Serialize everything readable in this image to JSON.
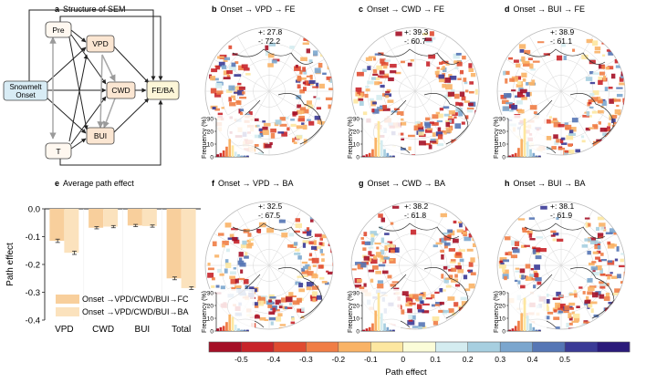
{
  "panels": {
    "a": {
      "letter": "a",
      "title": "Structure of SEM",
      "nodes": {
        "pre": "Pre",
        "t": "T",
        "onset": [
          "Snowmelt",
          "Onset"
        ],
        "vpd": "VPD",
        "cwd": "CWD",
        "bui": "BUI",
        "fe": "FE/BA"
      },
      "colors": {
        "node_peach": "#fbe6d2",
        "node_blue": "#d8ecf5",
        "node_yellow": "#fdf6d8",
        "node_light": "#fff8f0"
      }
    },
    "maps": [
      {
        "letter": "b",
        "title": "Onset → VPD → FE",
        "plus": "+: 27.8",
        "minus": "-: 72.2",
        "seed": 11
      },
      {
        "letter": "c",
        "title": "Onset → CWD → FE",
        "plus": "+: 39.3",
        "minus": "-: 60.7",
        "seed": 23
      },
      {
        "letter": "d",
        "title": "Onset → BUI → FE",
        "plus": "+: 38.9",
        "minus": "-: 61.1",
        "seed": 37
      },
      {
        "letter": "f",
        "title": "Onset → VPD → BA",
        "plus": "+: 32.5",
        "minus": "-: 67.5",
        "seed": 41
      },
      {
        "letter": "g",
        "title": "Onset → CWD → BA",
        "plus": "+: 38.2",
        "minus": "-: 61.8",
        "seed": 53
      },
      {
        "letter": "h",
        "title": "Onset → BUI → BA",
        "plus": "+: 38.1",
        "minus": "-: 61.9",
        "seed": 67
      }
    ],
    "hist": {
      "ylabel": "Frequency (%)",
      "ticks": [
        "0",
        "10",
        "20",
        "30"
      ]
    },
    "e": {
      "letter": "e",
      "title": "Average path effect"
    },
    "colorbar": {
      "label": "Path effect",
      "ticks": [
        "-0.5",
        "-0.4",
        "-0.3",
        "-0.2",
        "-0.1",
        "0",
        "0.1",
        "0.2",
        "0.3",
        "0.4",
        "0.5"
      ],
      "colors": [
        "#a50f26",
        "#c8242a",
        "#e04a30",
        "#f07d45",
        "#f9b366",
        "#fde7a0",
        "#fbfcd8",
        "#d4ecf0",
        "#a7cfe0",
        "#7ba6ce",
        "#5576b5",
        "#3a3a96",
        "#2a1a7a"
      ]
    }
  },
  "chart_data": [
    {
      "type": "bar",
      "title": "Average path effect",
      "xlabel": "",
      "ylabel": "Path effect",
      "categories": [
        "VPD",
        "CWD",
        "BUI",
        "Total"
      ],
      "ylim": [
        -0.4,
        0.0
      ],
      "yticks": [
        0.0,
        -0.1,
        -0.2,
        -0.3,
        -0.4
      ],
      "ytick_labels": [
        "0.0",
        "-0.1",
        "-0.2",
        "-0.3",
        "-0.4"
      ],
      "legend": "lower-left",
      "series": [
        {
          "name": "Onset →VPD/CWD/BUI→FC",
          "color": "#f8cf9c",
          "values": [
            -0.115,
            -0.068,
            -0.06,
            -0.25
          ],
          "errors": [
            0.006,
            0.004,
            0.004,
            0.005
          ]
        },
        {
          "name": "Onset →VPD/CWD/BUI→BA",
          "color": "#fbe2bd",
          "values": [
            -0.158,
            -0.064,
            -0.062,
            -0.285
          ],
          "errors": [
            0.006,
            0.004,
            0.004,
            0.005
          ]
        }
      ]
    },
    {
      "type": "bar",
      "title": "",
      "note": "Inset histograms of path-effect distribution (one per map panel)",
      "xlabel": "",
      "ylabel": "Frequency (%)",
      "ylim": [
        0,
        30
      ],
      "categories": [
        "-0.5",
        "-0.4",
        "-0.3",
        "-0.2",
        "-0.1",
        "0",
        "0.1",
        "0.2",
        "0.3",
        "0.4",
        "0.5"
      ],
      "series": [
        {
          "name": "b",
          "values": [
            2,
            3,
            5,
            8,
            14,
            9,
            4,
            2,
            1,
            1,
            1
          ]
        },
        {
          "name": "c",
          "values": [
            1,
            2,
            3,
            6,
            15,
            28,
            13,
            6,
            3,
            1,
            1
          ]
        },
        {
          "name": "d",
          "values": [
            1,
            2,
            3,
            7,
            14,
            30,
            12,
            6,
            3,
            1,
            1
          ]
        },
        {
          "name": "f",
          "values": [
            2,
            3,
            4,
            7,
            13,
            11,
            5,
            2,
            1,
            1,
            1
          ]
        },
        {
          "name": "g",
          "values": [
            1,
            2,
            3,
            6,
            16,
            30,
            14,
            6,
            3,
            1,
            1
          ]
        },
        {
          "name": "h",
          "values": [
            1,
            2,
            4,
            8,
            14,
            26,
            12,
            6,
            3,
            1,
            1
          ]
        }
      ]
    }
  ]
}
